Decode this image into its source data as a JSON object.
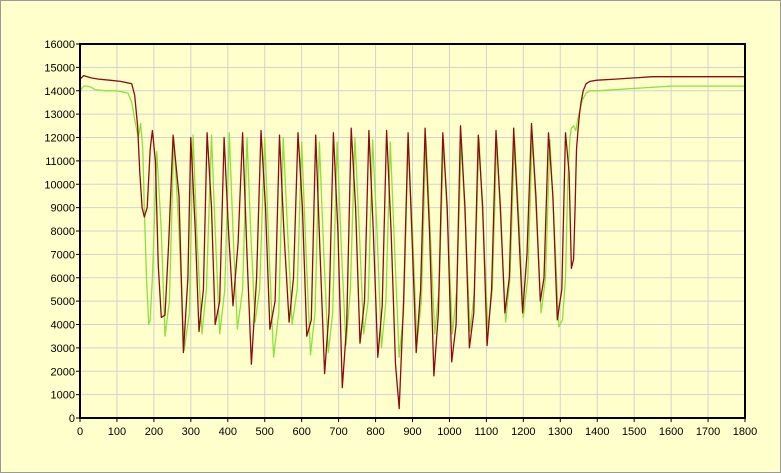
{
  "chart_data": {
    "type": "line",
    "title": "",
    "xlabel": "",
    "ylabel": "",
    "xlim": [
      0,
      1800
    ],
    "ylim": [
      0,
      16000
    ],
    "x_ticks": [
      0,
      100,
      200,
      300,
      400,
      500,
      600,
      700,
      800,
      900,
      1000,
      1100,
      1200,
      1300,
      1400,
      1500,
      1600,
      1700,
      1800
    ],
    "y_ticks": [
      0,
      1000,
      2000,
      3000,
      4000,
      5000,
      6000,
      7000,
      8000,
      9000,
      10000,
      11000,
      12000,
      13000,
      14000,
      15000,
      16000
    ],
    "grid": true,
    "legend": "none",
    "colors": {
      "panel_background": "#ffffcc",
      "plot_background": "#ffffcc",
      "grid": "#d2d2d2",
      "axis": "#000000"
    },
    "series": [
      {
        "color": "#8b0d12",
        "x": [
          0,
          10,
          20,
          30,
          50,
          80,
          110,
          140,
          148,
          156,
          162,
          168,
          174,
          182,
          190,
          196,
          204,
          212,
          220,
          230,
          240,
          252,
          268,
          280,
          292,
          300,
          312,
          322,
          334,
          344,
          356,
          366,
          378,
          390,
          402,
          414,
          428,
          440,
          452,
          464,
          478,
          490,
          502,
          514,
          528,
          540,
          552,
          566,
          578,
          590,
          602,
          614,
          626,
          638,
          650,
          662,
          674,
          686,
          698,
          710,
          722,
          734,
          746,
          758,
          770,
          782,
          794,
          806,
          818,
          830,
          842,
          854,
          864,
          876,
          888,
          898,
          910,
          922,
          934,
          946,
          958,
          970,
          982,
          994,
          1006,
          1018,
          1030,
          1042,
          1054,
          1066,
          1078,
          1090,
          1102,
          1114,
          1126,
          1138,
          1150,
          1162,
          1174,
          1186,
          1198,
          1210,
          1222,
          1234,
          1246,
          1256,
          1268,
          1280,
          1292,
          1304,
          1314,
          1324,
          1330,
          1336,
          1340,
          1344,
          1348,
          1352,
          1356,
          1362,
          1370,
          1380,
          1400,
          1450,
          1500,
          1550,
          1600,
          1700,
          1800
        ],
        "values": [
          14500,
          14650,
          14600,
          14550,
          14500,
          14450,
          14400,
          14300,
          13800,
          12500,
          10500,
          9000,
          8600,
          9000,
          11500,
          12300,
          11000,
          6500,
          4300,
          4400,
          7500,
          12100,
          9500,
          2800,
          6000,
          12000,
          8000,
          3700,
          5500,
          12200,
          9000,
          4000,
          5000,
          12000,
          8000,
          4800,
          7500,
          12200,
          7000,
          2300,
          6000,
          12300,
          9000,
          3800,
          5000,
          12100,
          8000,
          4100,
          6000,
          12200,
          9000,
          3500,
          4200,
          12100,
          7000,
          1900,
          4500,
          12200,
          8000,
          1300,
          4000,
          12400,
          9000,
          3200,
          5000,
          12300,
          8000,
          2600,
          4800,
          12300,
          8000,
          2300,
          400,
          5000,
          12200,
          8000,
          2800,
          5500,
          12400,
          8000,
          1800,
          4500,
          12200,
          9000,
          2400,
          4000,
          12500,
          9000,
          3000,
          4500,
          12100,
          9000,
          3100,
          5500,
          12300,
          9000,
          4500,
          6000,
          12400,
          8500,
          4500,
          7000,
          12600,
          9500,
          5000,
          6000,
          12200,
          9500,
          4200,
          5500,
          12200,
          10500,
          6400,
          6800,
          9000,
          11500,
          12300,
          13000,
          13500,
          14000,
          14300,
          14400,
          14450,
          14500,
          14550,
          14600,
          14600,
          14600,
          14600
        ]
      },
      {
        "color": "#8ee03a",
        "x": [
          0,
          10,
          20,
          30,
          40,
          70,
          100,
          130,
          140,
          150,
          158,
          164,
          170,
          174,
          180,
          186,
          190,
          196,
          208,
          220,
          230,
          242,
          254,
          268,
          282,
          296,
          306,
          316,
          330,
          342,
          356,
          366,
          378,
          392,
          404,
          414,
          426,
          440,
          452,
          462,
          474,
          486,
          500,
          512,
          524,
          538,
          550,
          562,
          574,
          588,
          600,
          612,
          624,
          636,
          648,
          660,
          672,
          684,
          696,
          708,
          720,
          732,
          744,
          756,
          768,
          780,
          792,
          804,
          816,
          828,
          840,
          852,
          864,
          876,
          888,
          900,
          912,
          924,
          936,
          948,
          960,
          972,
          984,
          996,
          1008,
          1020,
          1032,
          1044,
          1056,
          1068,
          1080,
          1092,
          1104,
          1116,
          1128,
          1140,
          1152,
          1164,
          1176,
          1188,
          1200,
          1212,
          1224,
          1236,
          1248,
          1260,
          1272,
          1284,
          1296,
          1306,
          1314,
          1320,
          1326,
          1330,
          1336,
          1342,
          1350,
          1360,
          1370,
          1380,
          1400,
          1500,
          1600,
          1700,
          1800
        ],
        "values": [
          14000,
          14200,
          14200,
          14150,
          14050,
          14000,
          14000,
          13900,
          13500,
          12600,
          12000,
          12600,
          11500,
          9000,
          6000,
          4000,
          4200,
          6000,
          11400,
          8000,
          3500,
          5000,
          12000,
          8000,
          2900,
          4500,
          12100,
          8000,
          3600,
          5500,
          12100,
          8000,
          3600,
          5500,
          12200,
          8000,
          3800,
          5500,
          12000,
          8000,
          4100,
          5500,
          12000,
          7000,
          2600,
          4500,
          12000,
          8000,
          4000,
          5500,
          11800,
          7000,
          2700,
          4500,
          11800,
          7000,
          2800,
          4500,
          11800,
          7000,
          3100,
          5500,
          12000,
          8000,
          3600,
          5000,
          11900,
          8000,
          3000,
          5000,
          11800,
          7000,
          2600,
          4500,
          11700,
          8000,
          3200,
          5000,
          12000,
          8000,
          3600,
          5500,
          11900,
          8000,
          3600,
          5500,
          11900,
          8000,
          3700,
          5500,
          12000,
          8000,
          3800,
          5500,
          11900,
          8000,
          4100,
          6000,
          12000,
          8500,
          4300,
          6000,
          12100,
          8500,
          4500,
          6000,
          11900,
          8000,
          3900,
          4200,
          6000,
          10000,
          12000,
          12400,
          12500,
          12300,
          13000,
          13600,
          13900,
          14000,
          14000,
          14100,
          14200,
          14200,
          14200
        ]
      }
    ]
  }
}
